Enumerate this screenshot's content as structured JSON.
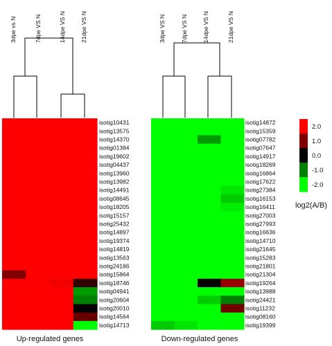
{
  "chart_data": [
    {
      "type": "heatmap",
      "xlabel": "Up-regulated genes",
      "columns": [
        "3dpe vs N",
        "7dpe VS N",
        "14dpe VS N",
        "21dpe VS N"
      ],
      "rows": [
        "isotig10431",
        "isotig13575",
        "isotig14370",
        "isotig01384",
        "isotig19602",
        "isotig04437",
        "isotig13960",
        "isotig13982",
        "isotig14491",
        "isotig08645",
        "isotig18205",
        "isotig15157",
        "isotig25432",
        "isotig14897",
        "isotig19374",
        "isotig14819",
        "isotig13563",
        "isotig24186",
        "isotig15864",
        "isotig18746",
        "isotig04941",
        "isotig20604",
        "isotig20010",
        "isotig14564",
        "isotig14713"
      ],
      "values": [
        [
          2,
          2,
          2,
          2
        ],
        [
          2,
          2,
          2,
          2
        ],
        [
          2,
          2,
          2,
          2
        ],
        [
          2,
          2,
          2,
          2
        ],
        [
          2,
          2,
          2,
          2
        ],
        [
          2,
          2,
          2,
          2
        ],
        [
          2,
          2,
          2,
          2
        ],
        [
          2,
          2,
          2,
          2
        ],
        [
          2,
          2,
          2,
          2
        ],
        [
          2,
          2,
          2,
          2
        ],
        [
          2,
          2,
          2,
          2
        ],
        [
          2,
          2,
          2,
          2
        ],
        [
          2,
          2,
          2,
          2
        ],
        [
          2,
          2,
          2,
          2
        ],
        [
          2,
          2,
          2,
          2
        ],
        [
          2,
          2,
          2,
          2
        ],
        [
          2,
          2,
          2,
          2
        ],
        [
          2,
          2,
          2,
          2
        ],
        [
          1,
          2,
          2,
          2
        ],
        [
          2,
          2,
          1.9,
          0.4
        ],
        [
          2,
          2,
          2,
          -1.2
        ],
        [
          2,
          2,
          2,
          -1.0
        ],
        [
          2,
          2,
          2,
          0.0
        ],
        [
          2,
          2,
          2,
          0.8
        ],
        [
          2,
          2,
          2,
          -2
        ]
      ]
    },
    {
      "type": "heatmap",
      "xlabel": "Down-regulated genes",
      "columns": [
        "3dpe VS N",
        "7dpe VS N",
        "14dpe VS N",
        "21dpe VS N"
      ],
      "rows": [
        "isotig14872",
        "isotig15359",
        "isotig07782",
        "isotig07647",
        "isotig14917",
        "isotig18269",
        "isotig16864",
        "isotig17622",
        "isotig27384",
        "isotig16153",
        "isotig16411",
        "isotig27003",
        "isotig27993",
        "isotig16636",
        "isotig14710",
        "isotig21645",
        "isotig15283",
        "isotig21801",
        "isotig21304",
        "isotig19264",
        "isotig13988",
        "isotig24421",
        "isotig11232",
        "isotig08160",
        "isotig19399"
      ],
      "values": [
        [
          -2,
          -2,
          -2,
          -2
        ],
        [
          -2,
          -2,
          -2,
          -2
        ],
        [
          -2,
          -2,
          -1.2,
          -2
        ],
        [
          -2,
          -2,
          -2,
          -2
        ],
        [
          -2,
          -2,
          -2,
          -2
        ],
        [
          -2,
          -2,
          -2,
          -2
        ],
        [
          -2,
          -2,
          -2,
          -2
        ],
        [
          -2,
          -2,
          -2,
          -2
        ],
        [
          -2,
          -2,
          -2,
          -1.8
        ],
        [
          -2,
          -2,
          -2,
          -1.6
        ],
        [
          -2,
          -2,
          -2,
          -1.85
        ],
        [
          -2,
          -2,
          -2,
          -2
        ],
        [
          -2,
          -2,
          -2,
          -2
        ],
        [
          -2,
          -2,
          -2,
          -2
        ],
        [
          -2,
          -2,
          -2,
          -2
        ],
        [
          -2,
          -2,
          -2,
          -2
        ],
        [
          -2,
          -2,
          -2,
          -2
        ],
        [
          -2,
          -2,
          -2,
          -2
        ],
        [
          -2,
          -2,
          -2,
          -2
        ],
        [
          -2,
          -2,
          0.0,
          1.2
        ],
        [
          -2,
          -2,
          -2,
          -2
        ],
        [
          -2,
          -2,
          -1.6,
          -1.0
        ],
        [
          -2,
          -2,
          -2,
          0.9
        ],
        [
          -2,
          -2,
          -2,
          -2
        ],
        [
          -1.6,
          -1.8,
          -2,
          -2
        ]
      ]
    }
  ],
  "legend": {
    "title": "log2(A/B)",
    "ticks": [
      "2.0",
      "1.0",
      "0.0",
      "-1.0",
      "-2.0"
    ],
    "colors": [
      "#ff0000",
      "#7f0000",
      "#000000",
      "#007f00",
      "#00ff00"
    ]
  },
  "colors": {
    "high": "#ff0000",
    "mid": "#000000",
    "low": "#00ff00"
  }
}
